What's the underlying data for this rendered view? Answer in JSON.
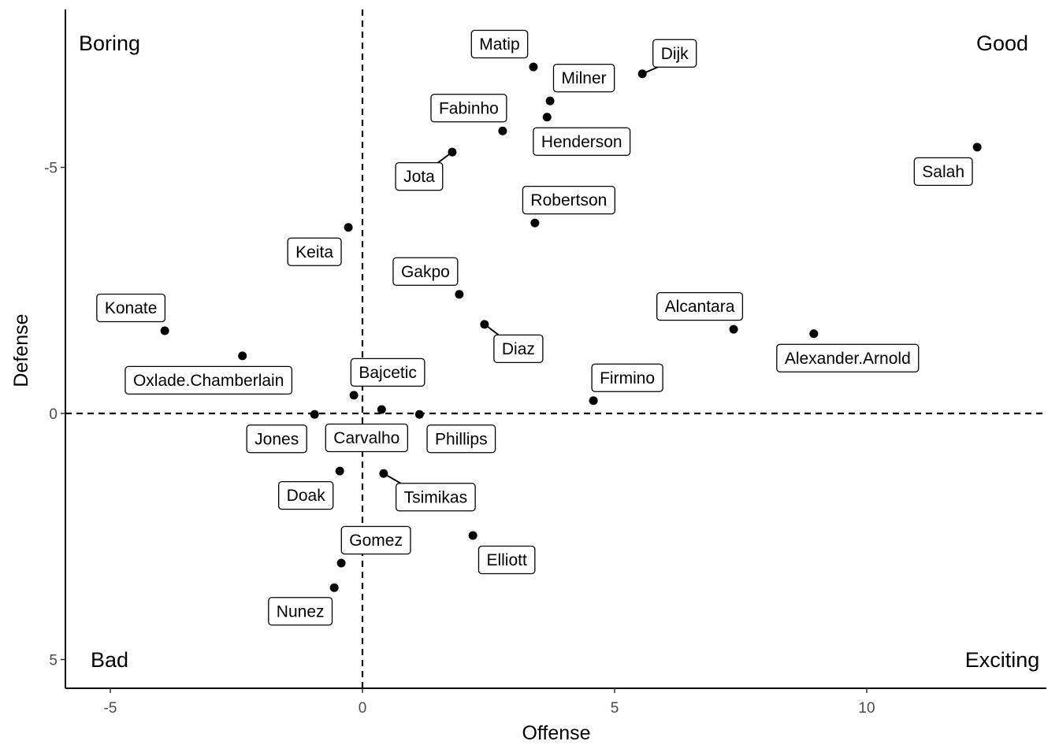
{
  "chart_data": {
    "type": "scatter",
    "title": "",
    "xlabel": "Offense",
    "ylabel": "Defense",
    "xlim": [
      -5.9,
      13.6
    ],
    "ylim": [
      -8.3,
      5.6
    ],
    "y_reversed": true,
    "x_ticks": [
      -5,
      0,
      5,
      10
    ],
    "y_ticks": [
      -5,
      0,
      5
    ],
    "grid": false,
    "reference_lines": {
      "x": 0,
      "y": 0,
      "style": "dashed"
    },
    "quadrant_labels": {
      "top_left": "Boring",
      "top_right": "Good",
      "bottom_left": "Bad",
      "bottom_right": "Exciting"
    },
    "points": [
      {
        "label": "Matip",
        "x": 3.39,
        "y": -7.04
      },
      {
        "label": "Dijk",
        "x": 5.55,
        "y": -6.9
      },
      {
        "label": "Milner",
        "x": 3.72,
        "y": -6.35
      },
      {
        "label": "Henderson",
        "x": 3.66,
        "y": -6.02
      },
      {
        "label": "Fabinho",
        "x": 2.78,
        "y": -5.74
      },
      {
        "label": "Jota",
        "x": 1.78,
        "y": -5.31
      },
      {
        "label": "Salah",
        "x": 12.19,
        "y": -5.41
      },
      {
        "label": "Robertson",
        "x": 3.42,
        "y": -3.87
      },
      {
        "label": "Keita",
        "x": -0.28,
        "y": -3.78
      },
      {
        "label": "Gakpo",
        "x": 1.92,
        "y": -2.42
      },
      {
        "label": "Diaz",
        "x": 2.42,
        "y": -1.81
      },
      {
        "label": "Alcantara",
        "x": 7.36,
        "y": -1.71
      },
      {
        "label": "Alexander.Arnold",
        "x": 8.95,
        "y": -1.62
      },
      {
        "label": "Konate",
        "x": -3.92,
        "y": -1.68
      },
      {
        "label": "Oxlade.Chamberlain",
        "x": -2.38,
        "y": -1.17
      },
      {
        "label": "Bajcetic",
        "x": -0.17,
        "y": -0.37
      },
      {
        "label": "Firmino",
        "x": 4.58,
        "y": -0.26
      },
      {
        "label": "Jones",
        "x": -0.95,
        "y": 0.02
      },
      {
        "label": "Carvalho",
        "x": 0.38,
        "y": -0.08
      },
      {
        "label": "Phillips",
        "x": 1.13,
        "y": 0.02
      },
      {
        "label": "Doak",
        "x": -0.45,
        "y": 1.17
      },
      {
        "label": "Tsimikas",
        "x": 0.42,
        "y": 1.22
      },
      {
        "label": "Elliott",
        "x": 2.19,
        "y": 2.48
      },
      {
        "label": "Gomez",
        "x": -0.42,
        "y": 3.04
      },
      {
        "label": "Nunez",
        "x": -0.56,
        "y": 3.54
      }
    ]
  }
}
